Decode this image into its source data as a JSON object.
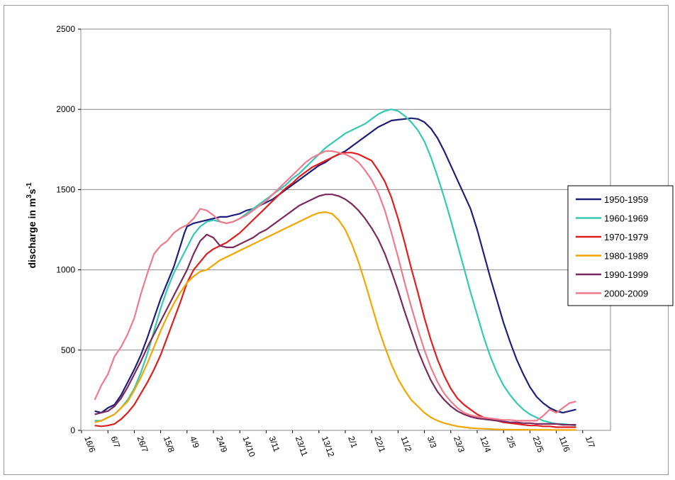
{
  "chart_data": {
    "type": "line",
    "title": "",
    "xlabel": "",
    "ylabel": "discharge in m³s⁻¹",
    "ylabel_parts": {
      "base": "discharge in m",
      "sup1": "3",
      "mid": "s",
      "sup2": "-1"
    },
    "ylim": [
      0,
      2500
    ],
    "yticks": [
      0,
      500,
      1000,
      1500,
      2000,
      2500
    ],
    "grid": "horizontal",
    "legend_position": "right",
    "xlim": [
      0,
      365
    ],
    "xtick_labels": [
      "16/6",
      "6/7",
      "26/7",
      "15/8",
      "4/9",
      "24/9",
      "14/10",
      "3/11",
      "23/11",
      "13/12",
      "2/1",
      "22/1",
      "11/2",
      "3/3",
      "23/3",
      "12/4",
      "2/5",
      "22/5",
      "11/6",
      "1/7"
    ],
    "xtick_positions": [
      0,
      20,
      40,
      60,
      80,
      100,
      120,
      140,
      160,
      180,
      200,
      220,
      240,
      260,
      280,
      300,
      320,
      340,
      360,
      380
    ],
    "series": [
      {
        "name": "1950-1959",
        "color": "#1f1f7a",
        "x": [
          10,
          15,
          20,
          25,
          30,
          35,
          40,
          45,
          50,
          55,
          60,
          65,
          70,
          75,
          78,
          80,
          85,
          90,
          95,
          100,
          105,
          110,
          115,
          120,
          125,
          130,
          135,
          140,
          145,
          150,
          155,
          160,
          165,
          170,
          175,
          180,
          185,
          190,
          195,
          200,
          205,
          210,
          215,
          220,
          225,
          230,
          235,
          240,
          245,
          250,
          255,
          260,
          265,
          270,
          275,
          280,
          285,
          290,
          295,
          300,
          305,
          310,
          315,
          320,
          325,
          330,
          335,
          340,
          345,
          350,
          355,
          360,
          365,
          370,
          375
        ],
        "y": [
          120,
          110,
          140,
          160,
          220,
          300,
          380,
          470,
          580,
          700,
          820,
          920,
          1020,
          1150,
          1230,
          1270,
          1290,
          1300,
          1310,
          1320,
          1330,
          1330,
          1340,
          1350,
          1370,
          1380,
          1400,
          1420,
          1440,
          1470,
          1500,
          1530,
          1560,
          1590,
          1620,
          1650,
          1670,
          1700,
          1720,
          1740,
          1770,
          1800,
          1830,
          1860,
          1890,
          1910,
          1930,
          1935,
          1940,
          1945,
          1940,
          1920,
          1880,
          1820,
          1740,
          1650,
          1560,
          1470,
          1380,
          1250,
          1100,
          950,
          810,
          670,
          550,
          440,
          350,
          270,
          210,
          170,
          140,
          120,
          110,
          120,
          130
        ]
      },
      {
        "name": "1960-1969",
        "color": "#33c9b4",
        "x": [
          10,
          15,
          20,
          25,
          30,
          35,
          40,
          45,
          50,
          55,
          60,
          65,
          70,
          75,
          80,
          85,
          90,
          95,
          100,
          105,
          110,
          115,
          120,
          125,
          130,
          135,
          140,
          145,
          150,
          155,
          160,
          165,
          170,
          175,
          180,
          185,
          190,
          195,
          200,
          205,
          210,
          215,
          220,
          225,
          230,
          235,
          240,
          245,
          250,
          255,
          260,
          265,
          270,
          275,
          280,
          285,
          290,
          295,
          300,
          305,
          310,
          315,
          320,
          325,
          330,
          335,
          340,
          345,
          350,
          355,
          360,
          365,
          370,
          375
        ],
        "y": [
          60,
          60,
          80,
          100,
          140,
          190,
          260,
          360,
          480,
          620,
          760,
          880,
          980,
          1060,
          1140,
          1220,
          1270,
          1300,
          1310,
          1300,
          1290,
          1300,
          1320,
          1350,
          1380,
          1410,
          1440,
          1470,
          1500,
          1530,
          1570,
          1600,
          1640,
          1680,
          1720,
          1760,
          1790,
          1820,
          1850,
          1870,
          1890,
          1910,
          1940,
          1970,
          1990,
          2000,
          1990,
          1960,
          1920,
          1870,
          1800,
          1700,
          1580,
          1450,
          1310,
          1160,
          1010,
          860,
          720,
          580,
          460,
          360,
          280,
          220,
          170,
          130,
          100,
          80,
          60,
          50,
          40,
          40,
          35,
          30
        ]
      },
      {
        "name": "1970-1979",
        "color": "#e11d1d",
        "x": [
          10,
          15,
          20,
          25,
          30,
          35,
          40,
          45,
          50,
          55,
          60,
          65,
          70,
          75,
          80,
          85,
          90,
          95,
          100,
          105,
          110,
          115,
          120,
          125,
          130,
          135,
          140,
          145,
          150,
          155,
          160,
          165,
          170,
          175,
          180,
          185,
          190,
          195,
          200,
          205,
          210,
          215,
          220,
          225,
          230,
          235,
          240,
          245,
          250,
          255,
          260,
          265,
          270,
          275,
          280,
          285,
          290,
          295,
          300,
          305,
          310,
          315,
          320,
          325,
          330,
          335,
          340,
          345,
          350,
          355,
          360,
          365,
          370,
          375
        ],
        "y": [
          30,
          25,
          30,
          40,
          70,
          110,
          160,
          230,
          300,
          380,
          470,
          580,
          690,
          800,
          920,
          1000,
          1050,
          1100,
          1130,
          1150,
          1170,
          1200,
          1230,
          1270,
          1310,
          1350,
          1390,
          1430,
          1470,
          1510,
          1540,
          1580,
          1610,
          1640,
          1660,
          1680,
          1700,
          1720,
          1730,
          1730,
          1720,
          1700,
          1680,
          1620,
          1550,
          1450,
          1320,
          1170,
          1010,
          860,
          700,
          560,
          440,
          340,
          260,
          200,
          160,
          130,
          100,
          80,
          70,
          60,
          50,
          45,
          40,
          35,
          30,
          30,
          25,
          25,
          20,
          20,
          20,
          20
        ]
      },
      {
        "name": "1980-1989",
        "color": "#f2a600",
        "x": [
          10,
          15,
          20,
          25,
          30,
          35,
          40,
          45,
          50,
          55,
          60,
          65,
          70,
          75,
          80,
          85,
          90,
          95,
          100,
          105,
          110,
          115,
          120,
          125,
          130,
          135,
          140,
          145,
          150,
          155,
          160,
          165,
          170,
          175,
          180,
          185,
          190,
          195,
          200,
          205,
          210,
          215,
          220,
          225,
          230,
          235,
          240,
          245,
          250,
          255,
          260,
          265,
          270,
          275,
          280,
          285,
          290,
          295,
          300,
          305,
          310,
          315,
          320,
          325,
          330,
          335,
          340,
          345,
          350,
          355,
          360,
          365,
          370,
          375
        ],
        "y": [
          50,
          60,
          80,
          100,
          140,
          180,
          250,
          330,
          420,
          520,
          620,
          710,
          790,
          860,
          920,
          960,
          990,
          1000,
          1030,
          1060,
          1080,
          1100,
          1120,
          1140,
          1160,
          1180,
          1200,
          1220,
          1240,
          1260,
          1280,
          1300,
          1320,
          1340,
          1355,
          1360,
          1350,
          1310,
          1250,
          1160,
          1050,
          920,
          780,
          640,
          520,
          410,
          320,
          250,
          190,
          150,
          110,
          80,
          60,
          45,
          35,
          25,
          20,
          15,
          12,
          10,
          8,
          6,
          5,
          5,
          4,
          4,
          3,
          3,
          3,
          3,
          2,
          2,
          2,
          2
        ]
      },
      {
        "name": "1990-1999",
        "color": "#7a2a5e",
        "x": [
          10,
          15,
          20,
          25,
          30,
          35,
          40,
          45,
          50,
          55,
          60,
          65,
          70,
          75,
          80,
          85,
          90,
          95,
          100,
          105,
          110,
          115,
          120,
          125,
          130,
          135,
          140,
          145,
          150,
          155,
          160,
          165,
          170,
          175,
          180,
          185,
          190,
          195,
          200,
          205,
          210,
          215,
          220,
          225,
          230,
          235,
          240,
          245,
          250,
          255,
          260,
          265,
          270,
          275,
          280,
          285,
          290,
          295,
          300,
          305,
          310,
          315,
          320,
          325,
          330,
          335,
          340,
          345,
          350,
          355,
          360,
          365,
          370,
          375
        ],
        "y": [
          100,
          110,
          120,
          150,
          200,
          270,
          350,
          430,
          520,
          600,
          680,
          760,
          840,
          920,
          1000,
          1100,
          1180,
          1220,
          1200,
          1150,
          1140,
          1140,
          1160,
          1180,
          1200,
          1230,
          1250,
          1280,
          1310,
          1340,
          1370,
          1400,
          1420,
          1440,
          1460,
          1470,
          1470,
          1460,
          1440,
          1410,
          1370,
          1320,
          1260,
          1190,
          1100,
          990,
          870,
          740,
          620,
          500,
          400,
          310,
          240,
          190,
          150,
          120,
          100,
          85,
          75,
          70,
          65,
          60,
          55,
          50,
          50,
          45,
          45,
          40,
          40,
          40,
          40,
          35,
          35,
          35
        ]
      },
      {
        "name": "2000-2009",
        "color": "#f07a8c",
        "x": [
          10,
          15,
          20,
          25,
          30,
          35,
          40,
          45,
          50,
          55,
          60,
          65,
          70,
          75,
          80,
          85,
          90,
          95,
          100,
          105,
          110,
          115,
          120,
          125,
          130,
          135,
          140,
          145,
          150,
          155,
          160,
          165,
          170,
          175,
          180,
          185,
          190,
          195,
          200,
          205,
          210,
          215,
          220,
          225,
          230,
          235,
          240,
          245,
          250,
          255,
          260,
          265,
          270,
          275,
          280,
          285,
          290,
          295,
          300,
          305,
          310,
          315,
          320,
          325,
          330,
          335,
          340,
          345,
          350,
          355,
          360,
          365,
          370,
          375
        ],
        "y": [
          190,
          280,
          350,
          460,
          520,
          600,
          700,
          850,
          980,
          1100,
          1150,
          1180,
          1230,
          1260,
          1280,
          1320,
          1380,
          1370,
          1340,
          1300,
          1290,
          1300,
          1320,
          1340,
          1370,
          1400,
          1430,
          1470,
          1510,
          1550,
          1590,
          1630,
          1670,
          1700,
          1720,
          1740,
          1740,
          1730,
          1720,
          1700,
          1670,
          1620,
          1560,
          1480,
          1370,
          1230,
          1080,
          920,
          770,
          630,
          500,
          390,
          300,
          230,
          180,
          140,
          110,
          95,
          85,
          80,
          75,
          70,
          65,
          65,
          60,
          60,
          60,
          60,
          90,
          130,
          110,
          140,
          170,
          180
        ]
      }
    ]
  }
}
